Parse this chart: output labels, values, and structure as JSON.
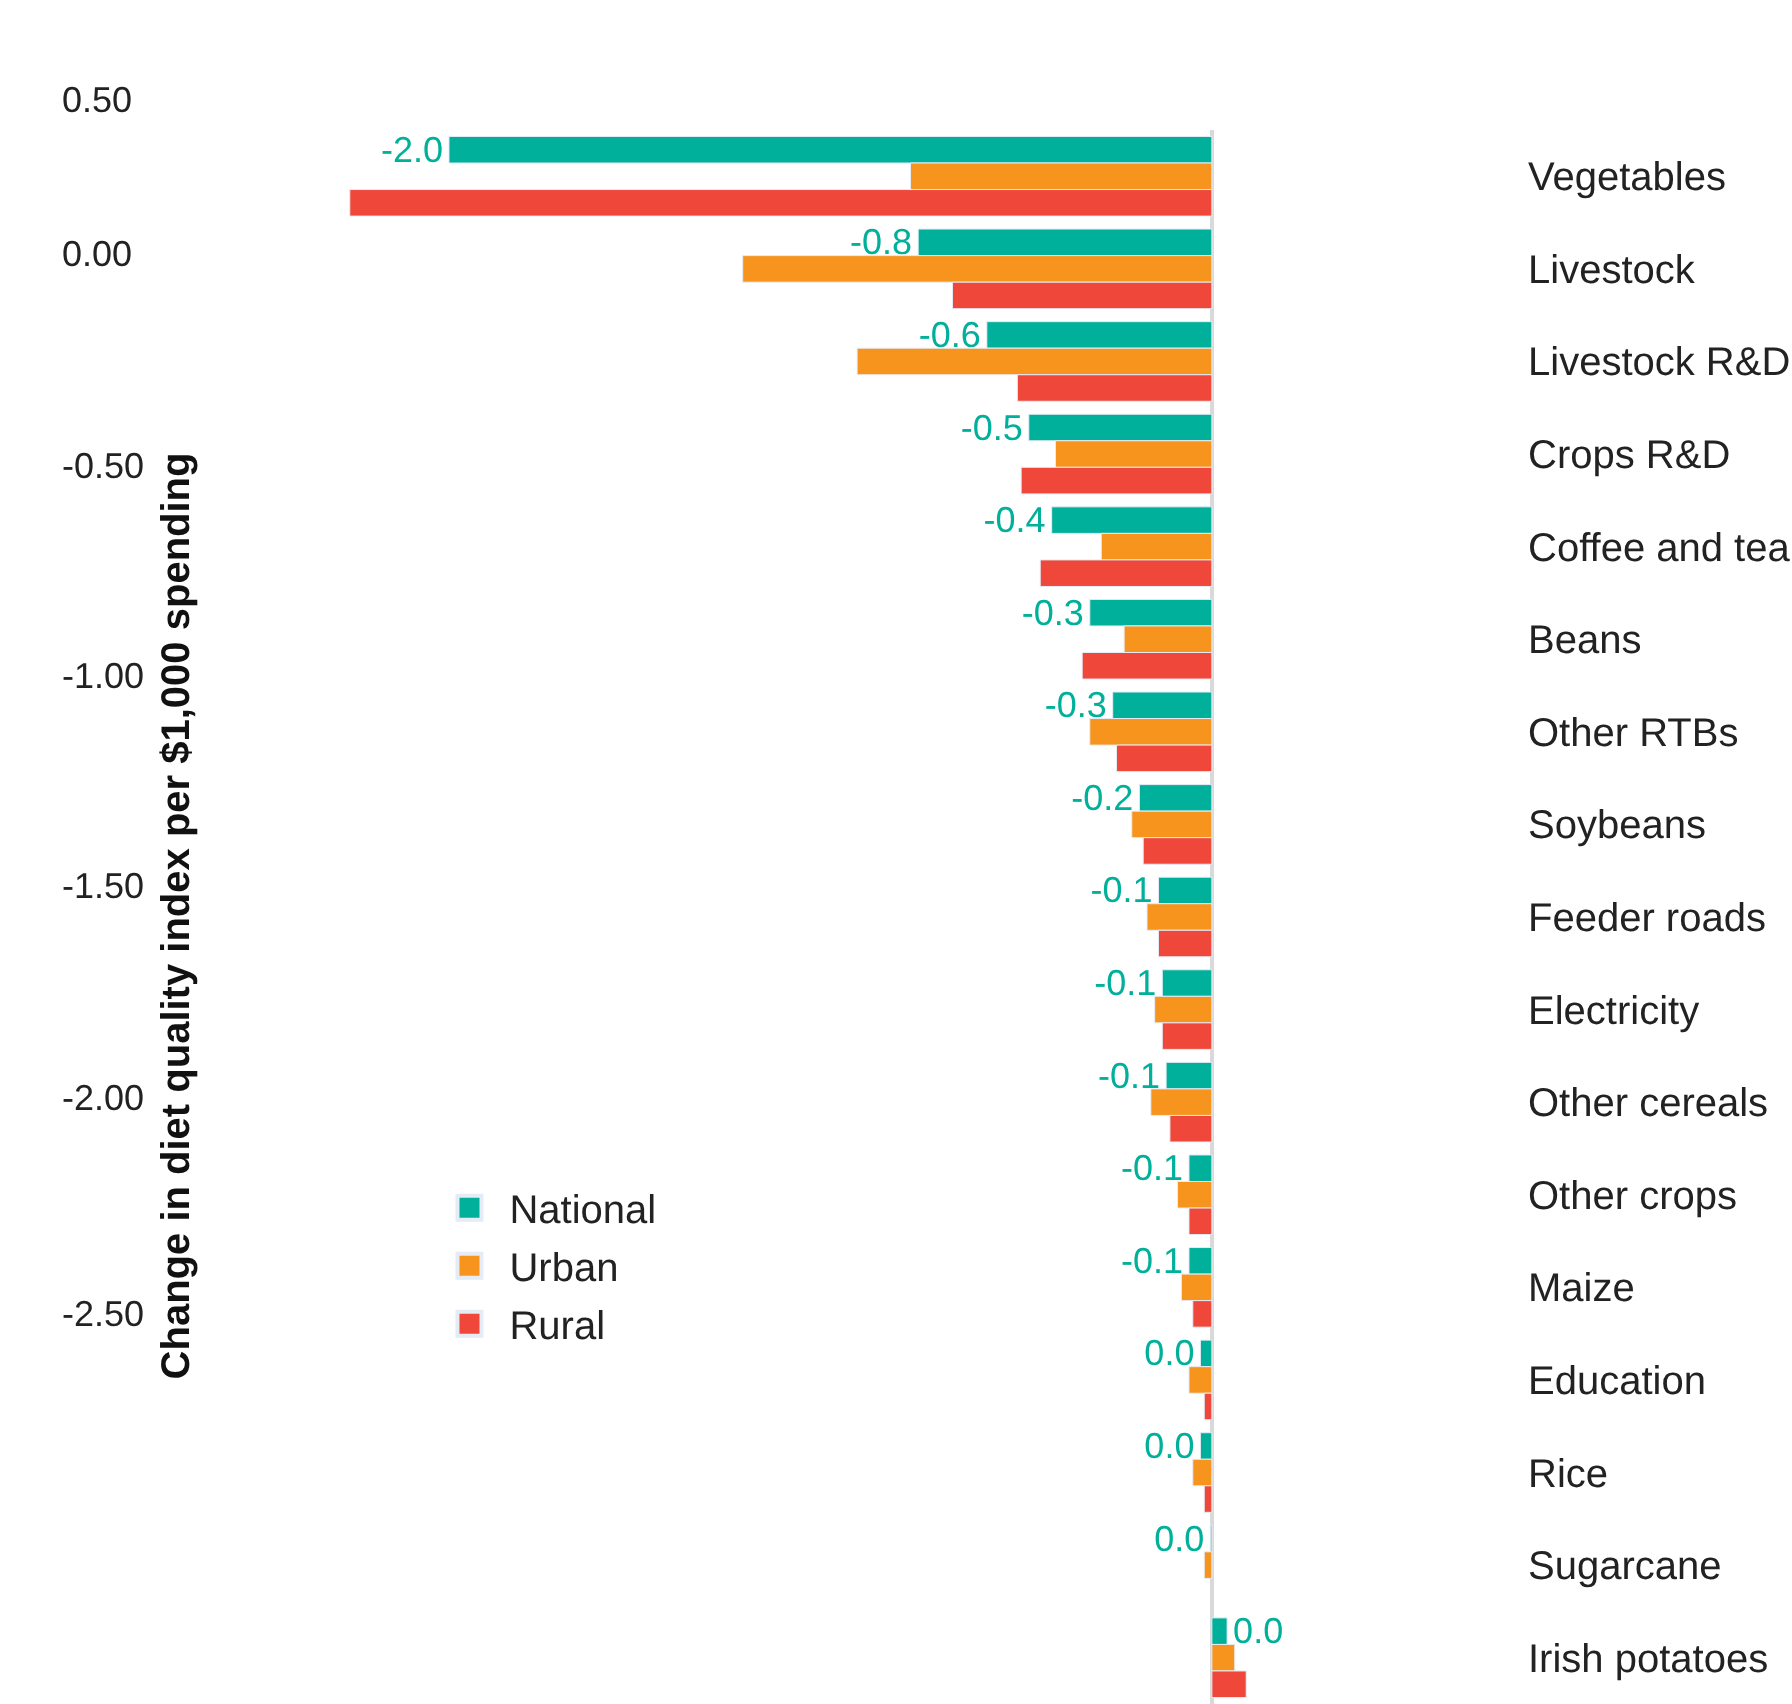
{
  "chart_data": {
    "type": "bar",
    "orientation": "horizontal",
    "ylabel": "Change in diet quality index per $1,000 spending",
    "categories": [
      "Vegetables",
      "Livestock",
      "Livestock R&D",
      "Crops R&D",
      "Coffee and tea",
      "Beans",
      "Other RTBs",
      "Soybeans",
      "Feeder roads",
      "Electricity",
      "Other cereals",
      "Other crops",
      "Maize",
      "Education",
      "Rice",
      "Sugarcane",
      "Irish potatoes"
    ],
    "series": [
      {
        "name": "National",
        "color": "#00b09b",
        "values": [
          -2.0,
          -0.77,
          -0.59,
          -0.48,
          -0.42,
          -0.32,
          -0.26,
          -0.19,
          -0.14,
          -0.13,
          -0.12,
          -0.06,
          -0.06,
          -0.03,
          -0.03,
          -0.004,
          0.04
        ],
        "value_labels": [
          "-2.0",
          "-0.8",
          "-0.6",
          "-0.5",
          "-0.4",
          "-0.3",
          "-0.3",
          "-0.2",
          "-0.1",
          "-0.1",
          "-0.1",
          "-0.1",
          "-0.1",
          "0.0",
          "0.0",
          "0.0",
          "0.0"
        ]
      },
      {
        "name": "Urban",
        "color": "#f7941d",
        "values": [
          -0.79,
          -1.23,
          -0.93,
          -0.41,
          -0.29,
          -0.23,
          -0.32,
          -0.21,
          -0.17,
          -0.15,
          -0.16,
          -0.09,
          -0.08,
          -0.06,
          -0.05,
          -0.02,
          0.06
        ]
      },
      {
        "name": "Rural",
        "color": "#ef473a",
        "values": [
          -2.26,
          -0.68,
          -0.51,
          -0.5,
          -0.45,
          -0.34,
          -0.25,
          -0.18,
          -0.14,
          -0.13,
          -0.11,
          -0.06,
          -0.05,
          -0.02,
          -0.02,
          null,
          0.09
        ]
      }
    ],
    "tick_labels": "y",
    "legend": "bottom left",
    "annotations": [
      "0.50",
      "0.00",
      "-0.50",
      "-1.00",
      "-1.50",
      "-2.00",
      "-2.50"
    ]
  }
}
